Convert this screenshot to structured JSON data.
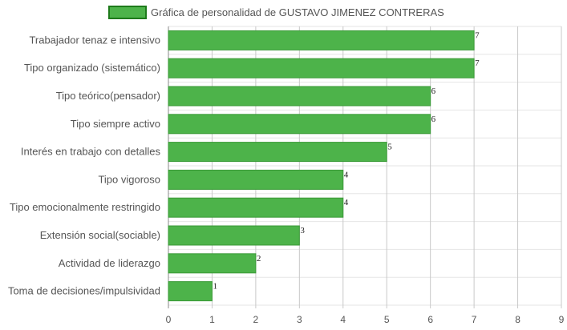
{
  "chart_data": {
    "type": "bar",
    "orientation": "horizontal",
    "legend": {
      "position": "top",
      "entries": [
        "Gráfica de personalidad de GUSTAVO JIMENEZ CONTRERAS"
      ]
    },
    "categories": [
      "Trabajador tenaz e intensivo",
      "Tipo organizado (sistemático)",
      "Tipo teórico(pensador)",
      "Tipo siempre activo",
      "Interés en trabajo con detalles",
      "Tipo vigoroso",
      "Tipo emocionalmente restringido",
      "Extensión social(sociable)",
      "Actividad de liderazgo",
      "Toma de decisiones/impulsividad"
    ],
    "series": [
      {
        "name": "Gráfica de personalidad de GUSTAVO JIMENEZ CONTRERAS",
        "values": [
          7,
          7,
          6,
          6,
          5,
          4,
          4,
          3,
          2,
          1
        ]
      }
    ],
    "xlim": [
      0,
      9
    ],
    "xticks": [
      "0",
      "1",
      "2",
      "3",
      "4",
      "5",
      "6",
      "7",
      "8",
      "9"
    ],
    "grid": true,
    "data_labels": true,
    "colors": {
      "bar_fill": "#4db34a",
      "bar_stroke": "#3a9a37",
      "grid": "#d6d6d6",
      "axis": "#888888"
    }
  }
}
